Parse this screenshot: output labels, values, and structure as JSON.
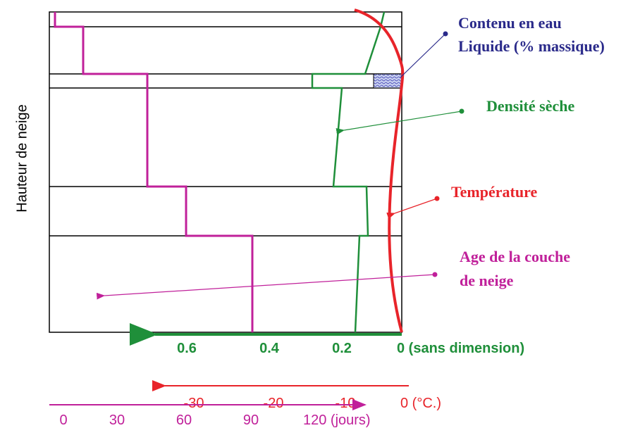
{
  "y_axis_label": "Hauteur de neige",
  "annotations": {
    "liquid": [
      "Contenu en eau",
      "Liquide (% massique)"
    ],
    "density": "Densité sèche",
    "temperature": "Température",
    "age": [
      "Age de la couche",
      "de neige"
    ]
  },
  "density_axis": [
    "0.6",
    "0.4",
    "0.2",
    "0 (sans dimension)"
  ],
  "temperature_axis": [
    "-30",
    "-20",
    "-10",
    "0 (°C.)"
  ],
  "age_axis": [
    "0",
    "30",
    "60",
    "90",
    "120 (jours)"
  ]
}
